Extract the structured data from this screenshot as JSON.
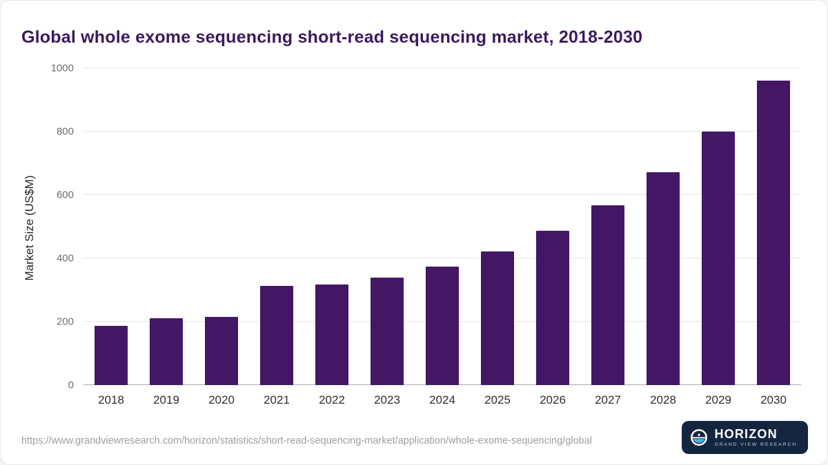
{
  "title": "Global whole exome sequencing short-read sequencing market, 2018-2030",
  "colors": {
    "bar": "#431764",
    "title_text": "#3a1b5d",
    "logo_bg": "#14253f",
    "logo_accent": "#45b1e8",
    "gridline": "#e4e4e7",
    "axis_line": "#a9a9ad"
  },
  "chart_data": {
    "type": "bar",
    "title": "Global whole exome sequencing short-read sequencing market, 2018-2030",
    "categories": [
      "2018",
      "2019",
      "2020",
      "2021",
      "2022",
      "2023",
      "2024",
      "2025",
      "2026",
      "2027",
      "2028",
      "2029",
      "2030"
    ],
    "values": [
      188,
      210,
      215,
      312,
      318,
      340,
      375,
      422,
      487,
      568,
      672,
      800,
      960
    ],
    "xlabel": "",
    "ylabel": "Market Size (US$M)",
    "ylim": [
      0,
      1000
    ],
    "yticks": [
      0,
      200,
      400,
      600,
      800,
      1000
    ],
    "grid": true,
    "legend": "none"
  },
  "footer": {
    "source_url": "https://www.grandviewresearch.com/horizon/statistics/short-read-sequencing-market/application/whole-exome-sequencing/global",
    "logo_title": "HORIZON",
    "logo_subtitle": "GRAND VIEW RESEARCH"
  }
}
